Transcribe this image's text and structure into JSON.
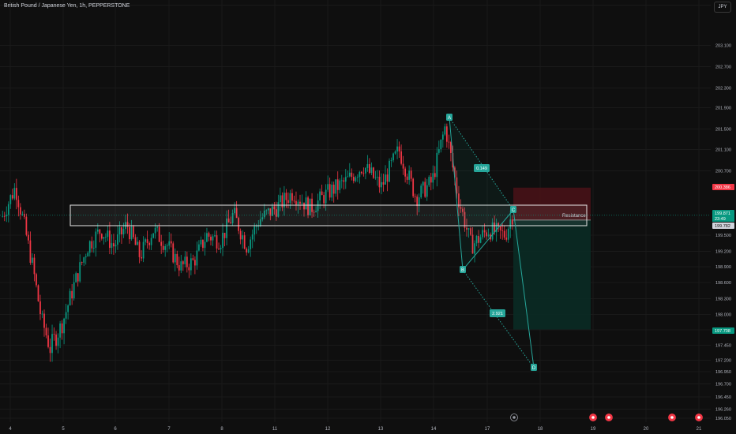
{
  "header": {
    "title": "British Pound / Japanese Yen, 1h, PEPPERSTONE",
    "currency": "JPY"
  },
  "chart_data": {
    "type": "candlestick",
    "ylim": [
      195.9,
      203.7
    ],
    "price_ticks": [
      "203.500",
      "203.100",
      "202.700",
      "202.300",
      "201.900",
      "201.500",
      "201.100",
      "200.700",
      "199.500",
      "199.200",
      "198.900",
      "198.600",
      "198.300",
      "198.000",
      "197.700",
      "197.450",
      "197.200",
      "196.950",
      "196.700",
      "196.450",
      "196.260",
      "196.050"
    ],
    "x_ticks": [
      "4",
      "5",
      "6",
      "7",
      "8",
      "11",
      "12",
      "13",
      "14",
      "17",
      "18",
      "19",
      "20",
      "21"
    ],
    "price_tags": [
      {
        "label": "200.386",
        "kind": "stop",
        "color": "#f23645"
      },
      {
        "label": "199.871",
        "kind": "last",
        "color": "#089981"
      },
      {
        "label": "23:49",
        "kind": "countdown",
        "color": "#089981"
      },
      {
        "label": "199.782",
        "kind": "entry",
        "color": "#d1d4dc"
      },
      {
        "label": "197.708",
        "kind": "target",
        "color": "#089981"
      }
    ],
    "close_path": [
      [
        "4",
        199.85
      ],
      [
        "4",
        200.4
      ],
      [
        "4",
        199.7
      ],
      [
        "4",
        198.9
      ],
      [
        "4",
        197.9
      ],
      [
        "4",
        197.4
      ],
      [
        "5",
        197.8
      ],
      [
        "5",
        198.6
      ],
      [
        "5",
        199.3
      ],
      [
        "5",
        199.6
      ],
      [
        "6",
        199.3
      ],
      [
        "6",
        199.7
      ],
      [
        "6",
        199.1
      ],
      [
        "6",
        199.6
      ],
      [
        "7",
        199.3
      ],
      [
        "7",
        198.9
      ],
      [
        "7",
        199.0
      ],
      [
        "7",
        199.5
      ],
      [
        "8",
        199.4
      ],
      [
        "8",
        199.9
      ],
      [
        "8",
        199.3
      ],
      [
        "8",
        199.8
      ],
      [
        "11",
        200.0
      ],
      [
        "11",
        200.3
      ],
      [
        "11",
        200.0
      ],
      [
        "12",
        200.3
      ],
      [
        "12",
        200.5
      ],
      [
        "12",
        200.8
      ],
      [
        "13",
        200.4
      ],
      [
        "13",
        201.1
      ],
      [
        "13",
        200.2
      ],
      [
        "14",
        200.5
      ],
      [
        "14",
        201.55
      ],
      [
        "14",
        200.2
      ],
      [
        "14",
        199.3
      ],
      [
        "17",
        199.6
      ],
      [
        "17",
        199.5
      ],
      [
        "17",
        199.87
      ]
    ],
    "harmonic": {
      "points": [
        "A",
        "B",
        "C",
        "D"
      ],
      "ratios": [
        "0.149",
        "2.921"
      ]
    },
    "annotations": [
      "Resistance"
    ],
    "colors": {
      "up": "#089981",
      "down": "#f23645",
      "background": "#0f0f0f"
    }
  }
}
